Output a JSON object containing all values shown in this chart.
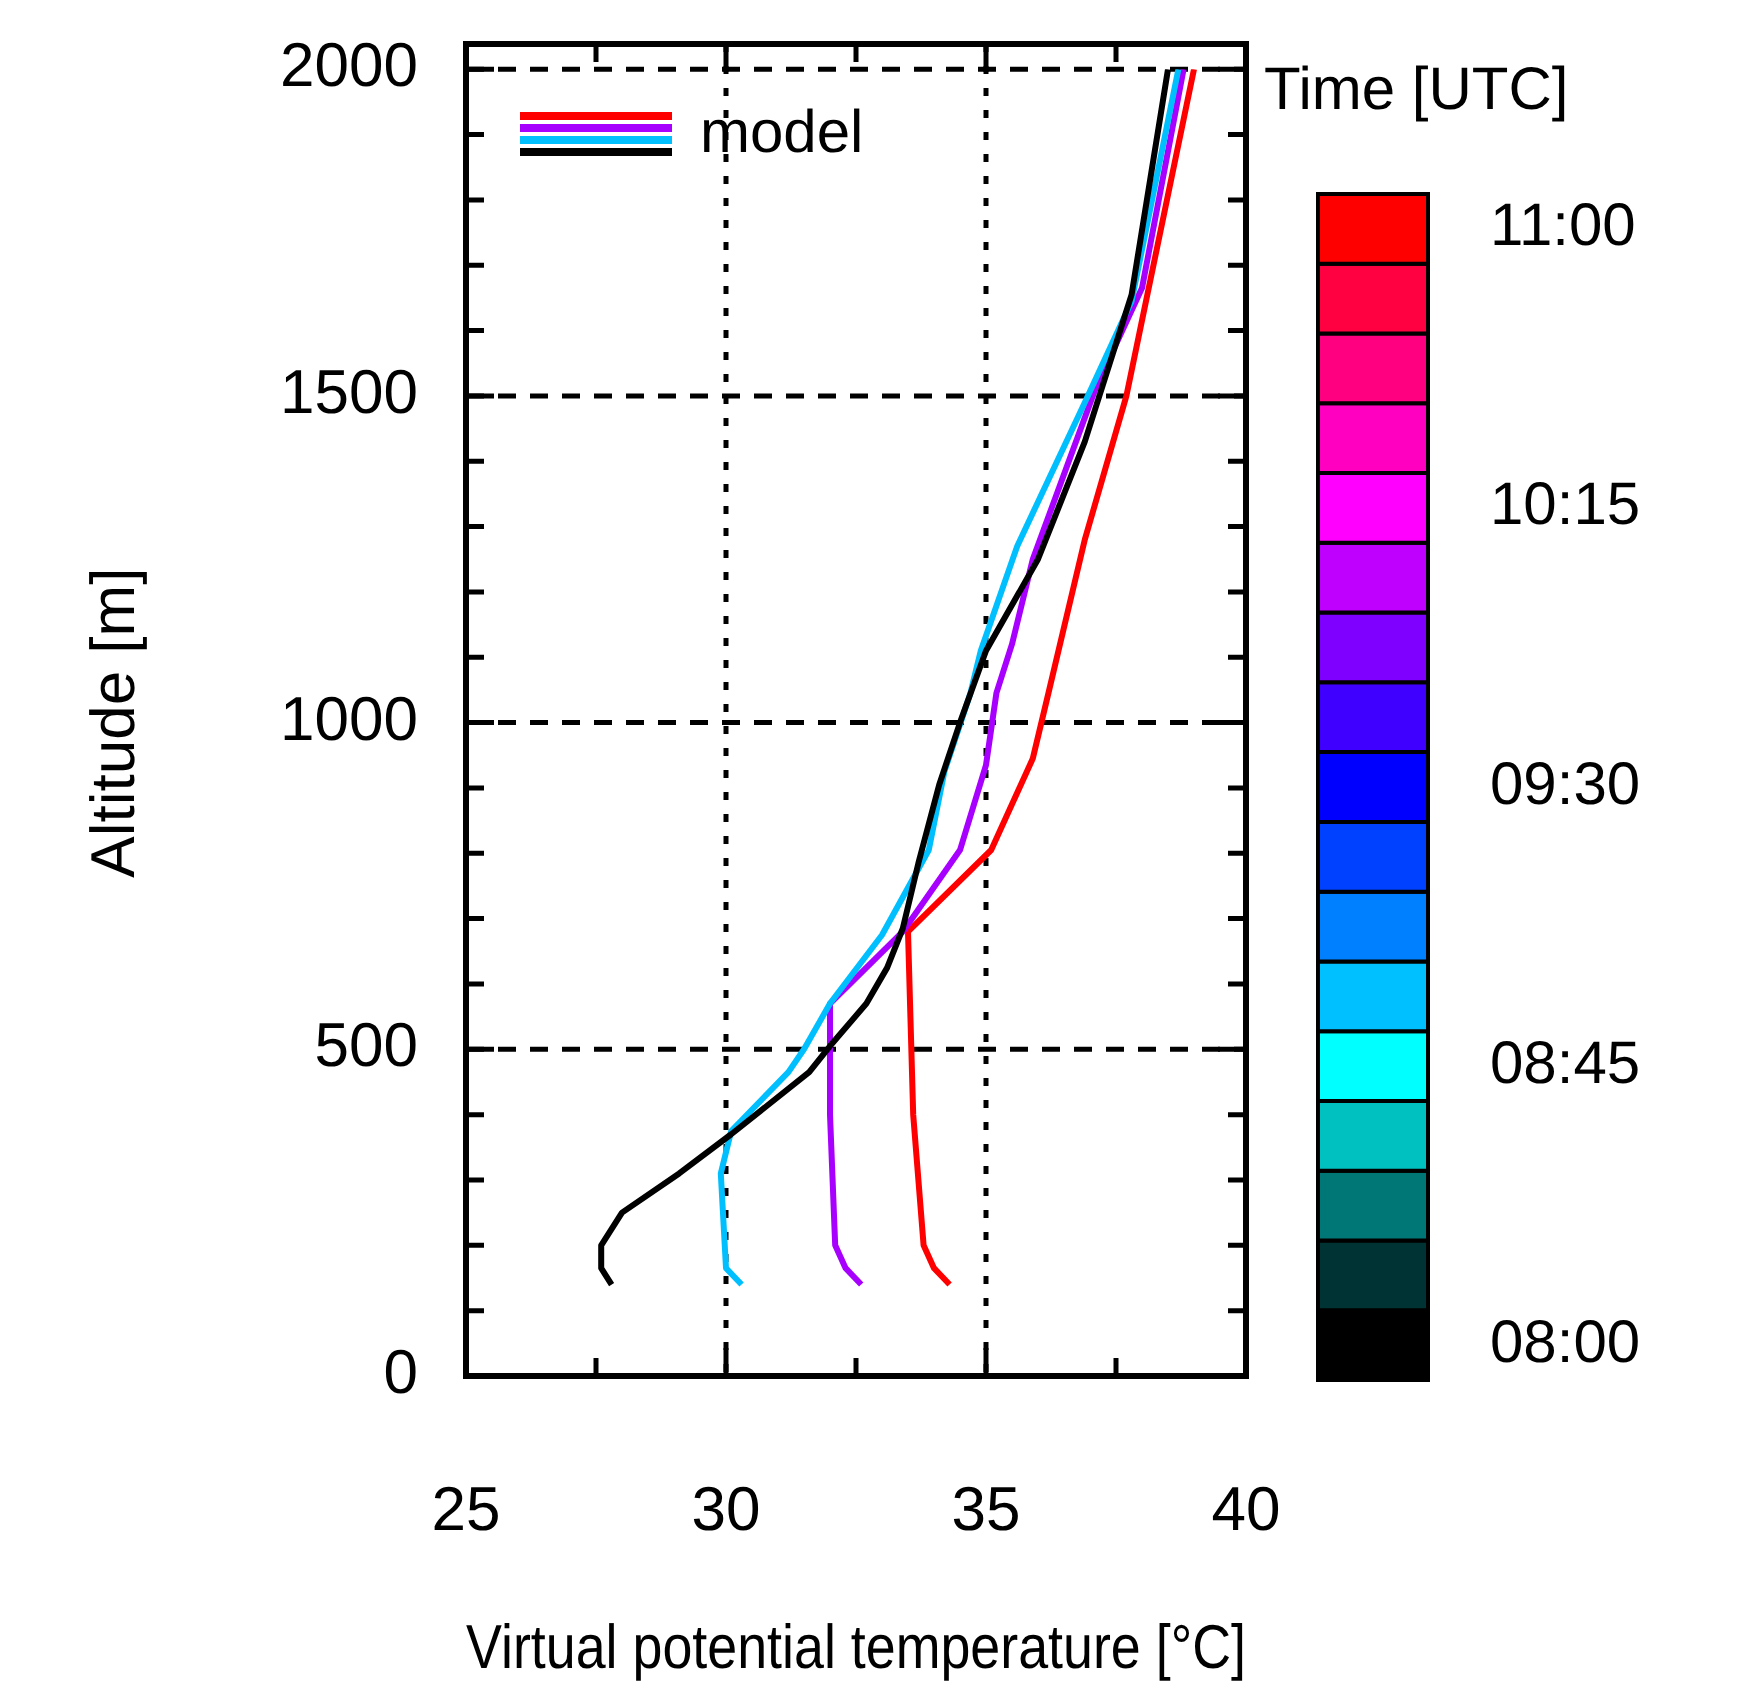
{
  "chart_data": {
    "type": "line",
    "xlabel": "Virtual potential temperature [°C]",
    "ylabel": "Altitude [m]",
    "annotations": [
      "model"
    ],
    "grid": true,
    "line_style": "solid",
    "marker": "none",
    "xlim": [
      25,
      40
    ],
    "xticks": [
      25,
      {
        "value": 27.5,
        "label": null
      },
      30,
      {
        "value": 32.5,
        "label": null
      },
      35,
      {
        "value": 37.5,
        "label": null
      },
      40
    ],
    "ylim": [
      0,
      2000
    ],
    "yticks": [
      0,
      {
        "value": 100,
        "label": null
      },
      {
        "value": 200,
        "label": null
      },
      {
        "value": 300,
        "label": null
      },
      {
        "value": 400,
        "label": null
      },
      500,
      {
        "value": 600,
        "label": null
      },
      {
        "value": 700,
        "label": null
      },
      {
        "value": 800,
        "label": null
      },
      {
        "value": 900,
        "label": null
      },
      1000,
      {
        "value": 1100,
        "label": null
      },
      {
        "value": 1200,
        "label": null
      },
      {
        "value": 1300,
        "label": null
      },
      {
        "value": 1400,
        "label": null
      },
      1500,
      {
        "value": 1600,
        "label": null
      },
      {
        "value": 1700,
        "label": null
      },
      {
        "value": 1800,
        "label": null
      },
      {
        "value": 1900,
        "label": null
      },
      2000
    ],
    "clabel": "Time [UTC]",
    "clim": [
      7.90625,
      11.09375
    ],
    "cticks": [
      {
        "value": 8,
        "label": "08:00"
      },
      {
        "value": 8.75,
        "label": "08:45"
      },
      {
        "value": 9.5,
        "label": "09:30"
      },
      {
        "value": 10.25,
        "label": "10:15"
      },
      {
        "value": 11,
        "label": "11:00"
      }
    ],
    "colors": [
      "#000000",
      "#003333",
      "#007777",
      "#00c0c0",
      "#00ffff",
      "#00c0ff",
      "#0080ff",
      "#0040ff",
      "#0000ff",
      "#4000ff",
      "#8000ff",
      "#c000ff",
      "#ff00ff",
      "#ff00c0",
      "#ff0080",
      "#ff0040",
      "#ff0000"
    ],
    "series": [
      {
        "color": "#000000",
        "x": [
          27.8,
          27.6,
          27.6,
          28.0,
          29.1,
          30.1,
          31.6,
          32.0,
          32.7,
          33.1,
          33.4,
          33.7,
          34.1,
          34.5,
          35.0,
          36.0,
          36.9,
          37.8,
          38.5
        ],
        "values": [
          140,
          165,
          200,
          250,
          310,
          370,
          465,
          505,
          570,
          625,
          685,
          785,
          905,
          1000,
          1110,
          1250,
          1430,
          1655,
          2000
        ]
      },
      {
        "color": "#00bfff",
        "x": [
          30.3,
          30.0,
          29.9,
          30.1,
          31.2,
          31.5,
          32.0,
          33.0,
          33.9,
          34.2,
          34.7,
          34.9,
          35.6,
          36.9,
          37.8,
          38.7
        ],
        "values": [
          140,
          165,
          310,
          375,
          465,
          500,
          570,
          675,
          805,
          925,
          1045,
          1110,
          1270,
          1490,
          1645,
          2000
        ]
      },
      {
        "color": "#a800ff",
        "x": [
          32.6,
          32.3,
          32.1,
          32.0,
          32.0,
          33.4,
          34.5,
          35.0,
          35.2,
          35.5,
          35.9,
          37.1,
          38.0,
          38.8
        ],
        "values": [
          140,
          165,
          200,
          400,
          570,
          680,
          805,
          935,
          1045,
          1120,
          1250,
          1510,
          1665,
          2000
        ]
      },
      {
        "color": "#ff0000",
        "x": [
          34.3,
          34.0,
          33.8,
          33.6,
          33.5,
          35.1,
          35.9,
          36.2,
          36.9,
          37.7,
          39.0
        ],
        "values": [
          140,
          165,
          200,
          400,
          680,
          805,
          945,
          1045,
          1280,
          1500,
          2000
        ]
      }
    ]
  }
}
